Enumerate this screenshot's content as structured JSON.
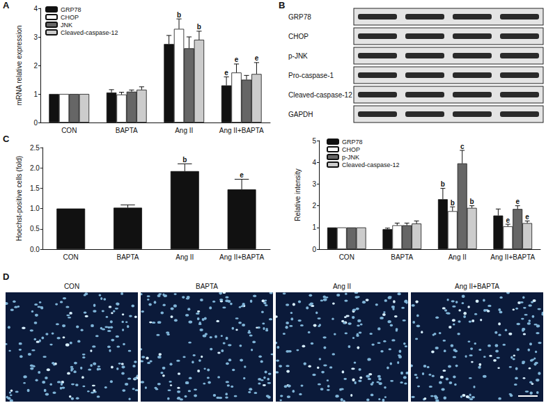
{
  "panels": [
    "A",
    "B",
    "C",
    "D"
  ],
  "chart_data": [
    {
      "type": "bar",
      "ylabel": "mRNA relative expression",
      "categories": [
        "CON",
        "BAPTA",
        "Ang II",
        "Ang II+BAPTA"
      ],
      "ylim": [
        0,
        4
      ],
      "yticks": [
        0,
        1,
        2,
        3,
        4
      ],
      "grid": false,
      "legend": "top-left",
      "series": [
        {
          "name": "GRP78",
          "color": "#111111",
          "values": [
            1,
            1.05,
            2.75,
            1.3
          ],
          "errors": [
            0,
            0.1,
            0.3,
            0.3
          ],
          "annotations": [
            null,
            null,
            null,
            "e"
          ]
        },
        {
          "name": "CHOP",
          "color": "#ffffff",
          "values": [
            1,
            0.98,
            3.28,
            1.75
          ],
          "errors": [
            0,
            0.08,
            0.35,
            0.3
          ],
          "annotations": [
            null,
            null,
            "b",
            "e"
          ]
        },
        {
          "name": "JNK",
          "color": "#666666",
          "values": [
            1,
            1.08,
            2.6,
            1.5
          ],
          "errors": [
            0,
            0.06,
            0.4,
            0.15
          ],
          "annotations": [
            null,
            null,
            null,
            null
          ]
        },
        {
          "name": "Cleaved-caspase-12",
          "color": "#cccccc",
          "values": [
            1,
            1.15,
            2.9,
            1.7
          ],
          "errors": [
            0,
            0.1,
            0.3,
            0.4
          ],
          "annotations": [
            null,
            null,
            "b",
            "e"
          ]
        }
      ]
    },
    {
      "type": "bar",
      "ylabel": "Relative intensity",
      "categories": [
        "CON",
        "BAPTA",
        "Ang II",
        "Ang II+BAPTA"
      ],
      "ylim": [
        0,
        5
      ],
      "yticks": [
        0,
        1,
        2,
        3,
        4,
        5
      ],
      "grid": false,
      "legend": "top-left",
      "series": [
        {
          "name": "GRP78",
          "color": "#111111",
          "values": [
            1,
            0.92,
            2.3,
            1.55
          ],
          "errors": [
            0,
            0.05,
            0.5,
            0.3
          ],
          "annotations": [
            null,
            null,
            "b",
            null
          ]
        },
        {
          "name": "CHOP",
          "color": "#ffffff",
          "values": [
            1,
            1.1,
            1.75,
            1.05
          ],
          "errors": [
            0,
            0.1,
            0.2,
            0.1
          ],
          "annotations": [
            null,
            null,
            "b",
            "e"
          ]
        },
        {
          "name": "p-JNK",
          "color": "#666666",
          "values": [
            1,
            1.1,
            3.95,
            1.85
          ],
          "errors": [
            0,
            0.1,
            0.6,
            0.15
          ],
          "annotations": [
            null,
            null,
            "c",
            "e"
          ]
        },
        {
          "name": "Cleaved-caspase-12",
          "color": "#cccccc",
          "values": [
            1,
            1.18,
            1.9,
            1.2
          ],
          "errors": [
            0,
            0.12,
            0.1,
            0.1
          ],
          "annotations": [
            null,
            null,
            "b",
            "e"
          ]
        }
      ]
    },
    {
      "type": "bar",
      "ylabel": "Hoechst-positive cells (fold)",
      "categories": [
        "CON",
        "BAPTA",
        "Ang II",
        "Ang II+BAPTA"
      ],
      "ylim": [
        0,
        2.5
      ],
      "yticks": [
        {
          "value": 0,
          "label": "0.0"
        },
        {
          "value": 0.5,
          "label": "0.5"
        },
        {
          "value": 1,
          "label": "1.0"
        },
        {
          "value": 1.5,
          "label": "1.5"
        },
        {
          "value": 2,
          "label": "2.0"
        },
        {
          "value": 2.5,
          "label": "2.5"
        }
      ],
      "grid": false,
      "color": "#111111",
      "values": [
        1,
        1.02,
        1.92,
        1.47
      ],
      "errors": [
        0,
        0.07,
        0.18,
        0.25
      ],
      "annotations": [
        null,
        null,
        "b",
        "e"
      ]
    }
  ],
  "blot": {
    "labels": [
      "GRP78",
      "CHOP",
      "p-JNK",
      "Pro-caspase-1",
      "Cleaved-caspase-12",
      "GAPDH"
    ]
  },
  "micrographs": {
    "titles": [
      "CON",
      "BAPTA",
      "Ang II",
      "Ang II+BAPTA"
    ]
  }
}
